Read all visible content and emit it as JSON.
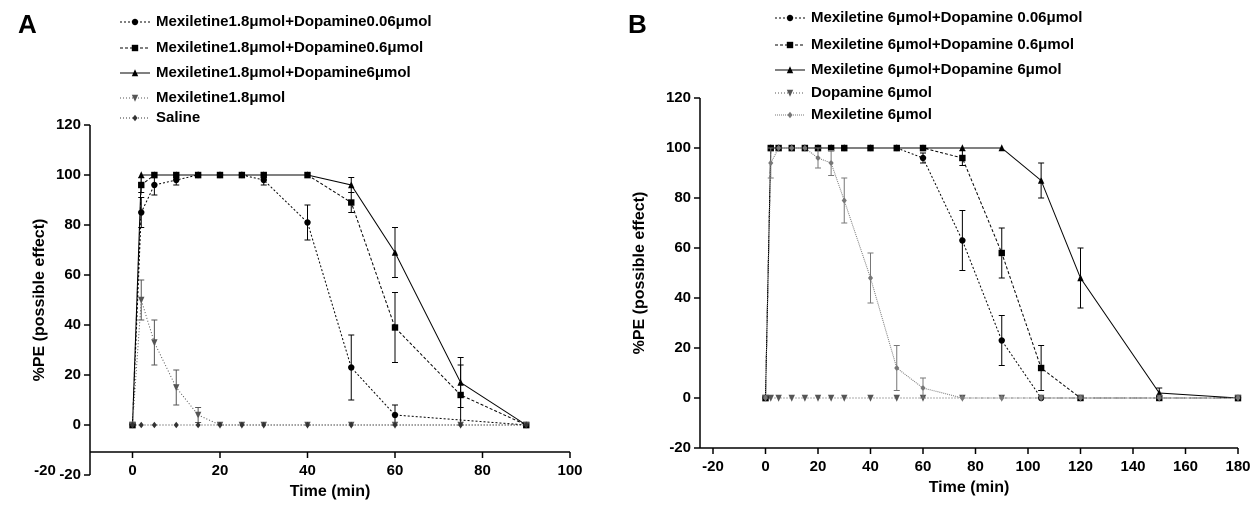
{
  "chart_data": [
    {
      "type": "line",
      "panel": "A",
      "xlabel": "Time (min)",
      "ylabel": "%PE (possible effect)",
      "xlim": [
        -20,
        100
      ],
      "xticks": [
        -20,
        0,
        20,
        40,
        60,
        80,
        100
      ],
      "ylim": [
        -20,
        120
      ],
      "yticks": [
        -20,
        0,
        20,
        40,
        60,
        80,
        100,
        120
      ],
      "series": [
        {
          "name": "Mexiletine1.8μmol+Dopamine0.06μmol",
          "color": "#000000",
          "marker": "circle",
          "dash": "2,2",
          "x": [
            0,
            2,
            5,
            10,
            15,
            20,
            25,
            30,
            40,
            50,
            60,
            90
          ],
          "values": [
            0,
            85,
            96,
            98,
            100,
            100,
            100,
            98,
            81,
            23,
            4,
            0
          ],
          "errors": [
            0,
            6,
            4,
            2,
            0,
            0,
            0,
            2,
            7,
            13,
            4,
            0
          ]
        },
        {
          "name": "Mexiletine1.8μmol+Dopamine0.6μmol",
          "color": "#000000",
          "marker": "square",
          "dash": "3,2",
          "x": [
            0,
            2,
            5,
            10,
            15,
            20,
            25,
            30,
            40,
            50,
            60,
            75,
            90
          ],
          "values": [
            0,
            96,
            100,
            100,
            100,
            100,
            100,
            100,
            100,
            89,
            39,
            12,
            0
          ],
          "errors": [
            0,
            3,
            0,
            0,
            0,
            0,
            0,
            0,
            0,
            4,
            14,
            12,
            0
          ]
        },
        {
          "name": "Mexiletine1.8μmol+Dopamine6μmol",
          "color": "#000000",
          "marker": "triangle",
          "dash": "none",
          "x": [
            0,
            2,
            5,
            10,
            15,
            20,
            25,
            30,
            40,
            50,
            60,
            75,
            90
          ],
          "values": [
            0,
            100,
            100,
            100,
            100,
            100,
            100,
            100,
            100,
            96,
            69,
            17,
            0
          ],
          "errors": [
            0,
            0,
            0,
            0,
            0,
            0,
            0,
            0,
            0,
            3,
            10,
            10,
            0
          ]
        },
        {
          "name": "Mexiletine1.8μmol",
          "color": "#555555",
          "marker": "down",
          "dash": "1,2",
          "x": [
            0,
            2,
            5,
            10,
            15,
            20,
            25,
            30,
            40,
            50,
            60,
            75,
            90
          ],
          "values": [
            0,
            50,
            33,
            15,
            4,
            0,
            0,
            0,
            0,
            0,
            0,
            0,
            0
          ],
          "errors": [
            0,
            8,
            9,
            7,
            3,
            0,
            0,
            0,
            0,
            0,
            0,
            0,
            0
          ]
        },
        {
          "name": "Saline",
          "color": "#333333",
          "marker": "diamond",
          "dash": "1,2",
          "x": [
            0,
            2,
            5,
            10,
            15,
            20,
            25,
            30,
            40,
            50,
            60,
            75,
            90
          ],
          "values": [
            0,
            0,
            0,
            0,
            0,
            0,
            0,
            0,
            0,
            0,
            0,
            0,
            0
          ],
          "errors": [
            0,
            0,
            0,
            0,
            0,
            0,
            0,
            0,
            0,
            0,
            0,
            0,
            0
          ]
        }
      ]
    },
    {
      "type": "line",
      "panel": "B",
      "xlabel": "Time (min)",
      "ylabel": "%PE (possible effect)",
      "xlim": [
        -20,
        180
      ],
      "xticks": [
        -20,
        0,
        20,
        40,
        60,
        80,
        100,
        120,
        140,
        160,
        180
      ],
      "ylim": [
        -20,
        120
      ],
      "yticks": [
        -20,
        0,
        20,
        40,
        60,
        80,
        100,
        120
      ],
      "series": [
        {
          "name": "Mexiletine 6μmol+Dopamine 0.06μmol",
          "color": "#000000",
          "marker": "circle",
          "dash": "2,2",
          "x": [
            0,
            2,
            5,
            10,
            15,
            20,
            25,
            30,
            40,
            50,
            60,
            75,
            90,
            105,
            120,
            150,
            180
          ],
          "values": [
            0,
            100,
            100,
            100,
            100,
            100,
            100,
            100,
            100,
            100,
            96,
            63,
            23,
            0,
            0,
            0,
            0
          ],
          "errors": [
            0,
            0,
            0,
            0,
            0,
            0,
            0,
            0,
            0,
            0,
            2,
            12,
            10,
            0,
            0,
            0,
            0
          ]
        },
        {
          "name": "Mexiletine 6μmol+Dopamine 0.6μmol",
          "color": "#000000",
          "marker": "square",
          "dash": "3,2",
          "x": [
            0,
            2,
            5,
            10,
            15,
            20,
            25,
            30,
            40,
            50,
            60,
            75,
            90,
            105,
            120,
            150,
            180
          ],
          "values": [
            0,
            100,
            100,
            100,
            100,
            100,
            100,
            100,
            100,
            100,
            100,
            96,
            58,
            12,
            0,
            0,
            0
          ],
          "errors": [
            0,
            0,
            0,
            0,
            0,
            0,
            0,
            0,
            0,
            0,
            0,
            3,
            10,
            9,
            0,
            0,
            0
          ]
        },
        {
          "name": "Mexiletine 6μmol+Dopamine 6μmol",
          "color": "#000000",
          "marker": "triangle",
          "dash": "none",
          "x": [
            0,
            2,
            5,
            10,
            15,
            20,
            25,
            30,
            40,
            50,
            60,
            75,
            90,
            105,
            120,
            150,
            180
          ],
          "values": [
            0,
            100,
            100,
            100,
            100,
            100,
            100,
            100,
            100,
            100,
            100,
            100,
            100,
            87,
            48,
            2,
            0
          ],
          "errors": [
            0,
            0,
            0,
            0,
            0,
            0,
            0,
            0,
            0,
            0,
            0,
            0,
            0,
            7,
            12,
            2,
            0
          ]
        },
        {
          "name": "Dopamine 6μmol",
          "color": "#555555",
          "marker": "down",
          "dash": "1,2",
          "x": [
            0,
            2,
            5,
            10,
            15,
            20,
            25,
            30,
            40,
            50,
            60,
            75,
            90,
            105,
            120,
            150,
            180
          ],
          "values": [
            0,
            0,
            0,
            0,
            0,
            0,
            0,
            0,
            0,
            0,
            0,
            0,
            0,
            0,
            0,
            0,
            0
          ],
          "errors": [
            0,
            0,
            0,
            0,
            0,
            0,
            0,
            0,
            0,
            0,
            0,
            0,
            0,
            0,
            0,
            0,
            0
          ]
        },
        {
          "name": "Mexiletine 6μmol",
          "color": "#777777",
          "marker": "diamond",
          "dash": "1,1",
          "x": [
            0,
            2,
            5,
            10,
            15,
            20,
            25,
            30,
            40,
            50,
            60,
            75,
            90,
            105,
            120,
            150,
            180
          ],
          "values": [
            0,
            94,
            100,
            100,
            100,
            96,
            94,
            79,
            48,
            12,
            4,
            0,
            0,
            0,
            0,
            0,
            0
          ],
          "errors": [
            0,
            6,
            0,
            0,
            0,
            4,
            5,
            9,
            10,
            9,
            4,
            0,
            0,
            0,
            0,
            0,
            0
          ]
        }
      ]
    }
  ]
}
